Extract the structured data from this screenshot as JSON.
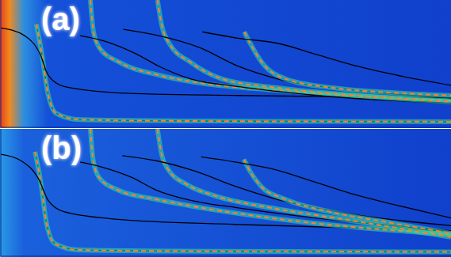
{
  "chart_data": [
    {
      "type": "line",
      "title": "(a)",
      "xlim": [
        0,
        100
      ],
      "ylim": [
        0,
        100
      ],
      "tick_labels": false,
      "grid": false,
      "series": [
        {
          "color": "#000000",
          "line_style": "solid",
          "x": [
            7.9,
            9.0,
            10.5,
            12.3,
            17.6,
            40,
            70,
            100
          ],
          "values": [
            81,
            60,
            26,
            11,
            6,
            5,
            4.6,
            4.4
          ]
        },
        {
          "color": "#ff7f2a",
          "line_style": "dashed",
          "x": [
            7.9,
            9.0,
            10.5,
            12.3,
            17.6,
            40,
            70,
            100
          ],
          "values": [
            81,
            60,
            26,
            11,
            6,
            5,
            4.6,
            4.4
          ]
        },
        {
          "color": "#000000",
          "line_style": "solid",
          "x": [
            0,
            5.3,
            8.8,
            10.5,
            14.1,
            26.4,
            52.7,
            100
          ],
          "values": [
            78,
            72,
            57,
            41,
            32,
            27,
            25,
            23
          ]
        },
        {
          "color": "#ff7f2a",
          "line_style": "dashed",
          "x": [
            19.9,
            20.6,
            22,
            26.4,
            35.1,
            43.9,
            61.5,
            100
          ],
          "values": [
            100,
            75,
            62,
            51,
            41,
            35,
            29,
            21
          ]
        },
        {
          "color": "#000000",
          "line_style": "solid",
          "x": [
            17.6,
            22.8,
            29.9,
            35.1,
            42.2,
            52.7,
            70.3,
            100
          ],
          "values": [
            72,
            68,
            58,
            48,
            38,
            32,
            25,
            19
          ]
        },
        {
          "color": "#ff7f2a",
          "line_style": "dashed",
          "x": [
            34.8,
            35.7,
            37.4,
            42.2,
            49.2,
            61.5,
            79.1,
            100
          ],
          "values": [
            100,
            81,
            66,
            51,
            38,
            31,
            25,
            20
          ]
        },
        {
          "color": "#000000",
          "line_style": "solid",
          "x": [
            27.2,
            35.1,
            43.9,
            52.7,
            61.5,
            79.1,
            100
          ],
          "values": [
            77,
            72,
            63,
            48,
            38,
            29,
            23
          ]
        },
        {
          "color": "#ff7f2a",
          "line_style": "dashed",
          "x": [
            54.1,
            55.4,
            58,
            63.3,
            73.8,
            87.9,
            100
          ],
          "values": [
            75,
            66,
            51,
            38,
            31,
            27,
            25
          ]
        },
        {
          "color": "#000000",
          "line_style": "solid",
          "x": [
            44.8,
            52.7,
            61.5,
            70.3,
            79.1,
            87.9,
            100
          ],
          "values": [
            75,
            70,
            66,
            57,
            48,
            41,
            33
          ]
        }
      ]
    },
    {
      "type": "line",
      "title": "(b)",
      "xlim": [
        0,
        100
      ],
      "ylim": [
        0,
        100
      ],
      "tick_labels": false,
      "grid": false,
      "series": [
        {
          "color": "#000000",
          "line_style": "solid",
          "x": [
            7.6,
            8.8,
            10.2,
            12.0,
            17.0,
            40,
            70,
            100
          ],
          "values": [
            82,
            60,
            25,
            10,
            5,
            4,
            3.6,
            3.4
          ]
        },
        {
          "color": "#ff7f2a",
          "line_style": "dashed",
          "x": [
            7.6,
            8.8,
            10.2,
            12.0,
            17.0,
            40,
            70,
            100
          ],
          "values": [
            82,
            60,
            25,
            10,
            5,
            4,
            3.6,
            3.4
          ]
        },
        {
          "color": "#000000",
          "line_style": "solid",
          "x": [
            0,
            4.5,
            8.5,
            10.5,
            14,
            26,
            52,
            100
          ],
          "values": [
            80,
            75,
            60,
            44,
            35,
            29,
            25,
            20
          ]
        },
        {
          "color": "#ff7f2a",
          "line_style": "dashed",
          "x": [
            19.9,
            20.5,
            21.8,
            26,
            34,
            43,
            60,
            100
          ],
          "values": [
            100,
            76,
            62,
            52,
            45,
            39,
            30,
            17
          ]
        },
        {
          "color": "#000000",
          "line_style": "solid",
          "x": [
            17.6,
            22.5,
            29,
            34.5,
            42,
            52.7,
            70,
            100
          ],
          "values": [
            74,
            70,
            62,
            52,
            44,
            38,
            30,
            20
          ]
        },
        {
          "color": "#ff7f2a",
          "line_style": "dashed",
          "x": [
            34.8,
            35.6,
            37.2,
            41.5,
            48,
            60,
            78,
            100
          ],
          "values": [
            100,
            82,
            68,
            56,
            47,
            38,
            28,
            15
          ]
        },
        {
          "color": "#000000",
          "line_style": "solid",
          "x": [
            27,
            34.5,
            43,
            52,
            61,
            78,
            100
          ],
          "values": [
            79,
            75,
            67,
            55,
            45,
            33,
            24
          ]
        },
        {
          "color": "#ff7f2a",
          "line_style": "dashed",
          "x": [
            54,
            55.3,
            57.8,
            63,
            73,
            87,
            100
          ],
          "values": [
            76,
            67,
            55,
            45,
            35,
            26,
            18
          ]
        },
        {
          "color": "#000000",
          "line_style": "solid",
          "x": [
            44.5,
            52,
            61,
            70,
            79,
            88,
            100
          ],
          "values": [
            78,
            74,
            68,
            58,
            48,
            40,
            30
          ]
        }
      ]
    }
  ]
}
